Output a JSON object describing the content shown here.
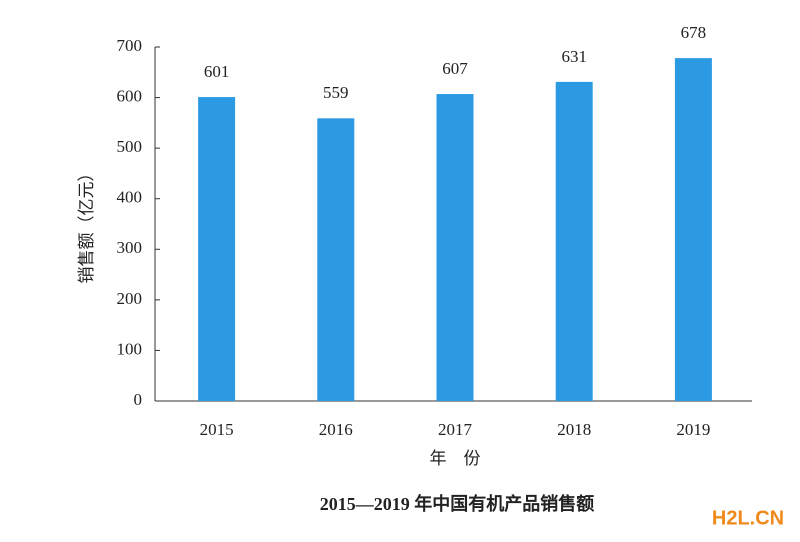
{
  "chart_data": {
    "type": "bar",
    "title": "2015—2019 年中国有机产品销售额",
    "x_label": "年　份",
    "y_label": "销售额（亿元）",
    "categories": [
      "2015",
      "2016",
      "2017",
      "2018",
      "2019"
    ],
    "values": [
      601,
      559,
      607,
      631,
      678
    ],
    "color": "#2b9ae3",
    "ylim": [
      0,
      700
    ],
    "yticks": [
      0,
      100,
      200,
      300,
      400,
      500,
      600,
      700
    ],
    "grid": false,
    "watermark": "H2L.CN"
  }
}
